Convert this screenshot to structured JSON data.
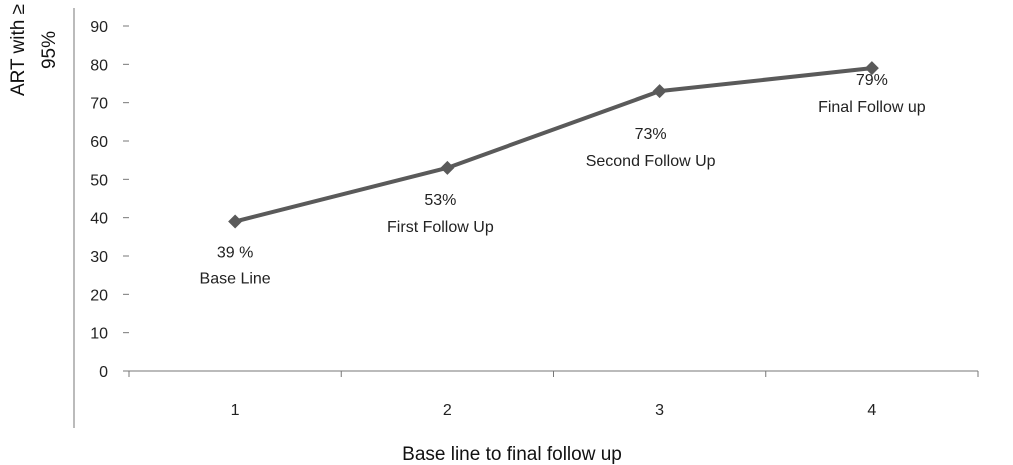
{
  "chart_data": {
    "type": "line",
    "title": "",
    "xlabel": "Base line to final follow up",
    "ylabel": [
      "ART with ≥",
      "95%"
    ],
    "x": [
      1,
      2,
      3,
      4
    ],
    "ylim": [
      0,
      90
    ],
    "yticks": [
      0,
      10,
      20,
      30,
      40,
      50,
      60,
      70,
      80,
      90
    ],
    "grid": false,
    "legend": "none",
    "series": [
      {
        "values": [
          39,
          53,
          73,
          79
        ],
        "color": "#5a5a5a",
        "marker": "diamond"
      }
    ],
    "annotations": [
      {
        "value_text": "39 %",
        "caption": "Base Line"
      },
      {
        "value_text": "53%",
        "caption": "First Follow Up"
      },
      {
        "value_text": "73%",
        "caption": "Second Follow Up"
      },
      {
        "value_text": "79%",
        "caption": "Final Follow up"
      }
    ]
  }
}
